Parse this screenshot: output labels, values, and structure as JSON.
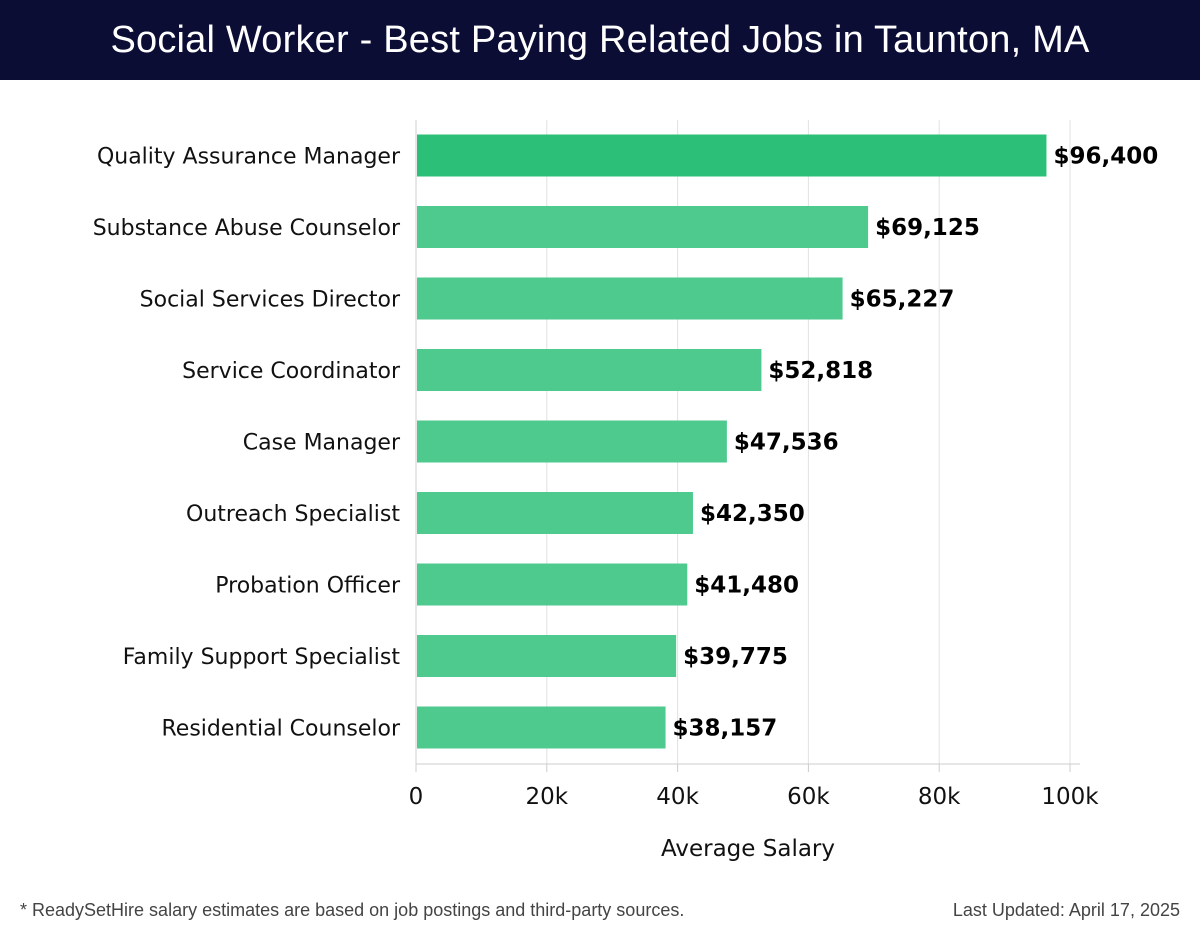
{
  "header": {
    "title": "Social Worker - Best Paying Related Jobs in Taunton, MA"
  },
  "chart_data": {
    "type": "bar",
    "orientation": "horizontal",
    "title": "Social Worker - Best Paying Related Jobs in Taunton, MA",
    "xlabel": "Average Salary",
    "ylabel": "",
    "xlim": [
      0,
      100000
    ],
    "grid": true,
    "categories": [
      "Quality Assurance Manager",
      "Substance Abuse Counselor",
      "Social Services Director",
      "Service Coordinator",
      "Case Manager",
      "Outreach Specialist",
      "Probation Officer",
      "Family Support Specialist",
      "Residential Counselor"
    ],
    "values": [
      96400,
      69125,
      65227,
      52818,
      47536,
      42350,
      41480,
      39775,
      38157
    ],
    "value_labels": [
      "$96,400",
      "$69,125",
      "$65,227",
      "$52,818",
      "$47,536",
      "$42,350",
      "$41,480",
      "$39,775",
      "$38,157"
    ],
    "ticks": [
      {
        "value": 0,
        "label": "0"
      },
      {
        "value": 20000,
        "label": "20k"
      },
      {
        "value": 40000,
        "label": "40k"
      },
      {
        "value": 60000,
        "label": "60k"
      },
      {
        "value": 80000,
        "label": "80k"
      },
      {
        "value": 100000,
        "label": "100k"
      }
    ],
    "colors": {
      "top_bar": "#2bbf77",
      "bar": "#4fca8f",
      "grid": "#e2e2e2",
      "axis": "#cccccc"
    }
  },
  "footer": {
    "note": "* ReadySetHire salary estimates are based on job postings and third-party sources.",
    "updated": "Last Updated: April 17, 2025"
  }
}
